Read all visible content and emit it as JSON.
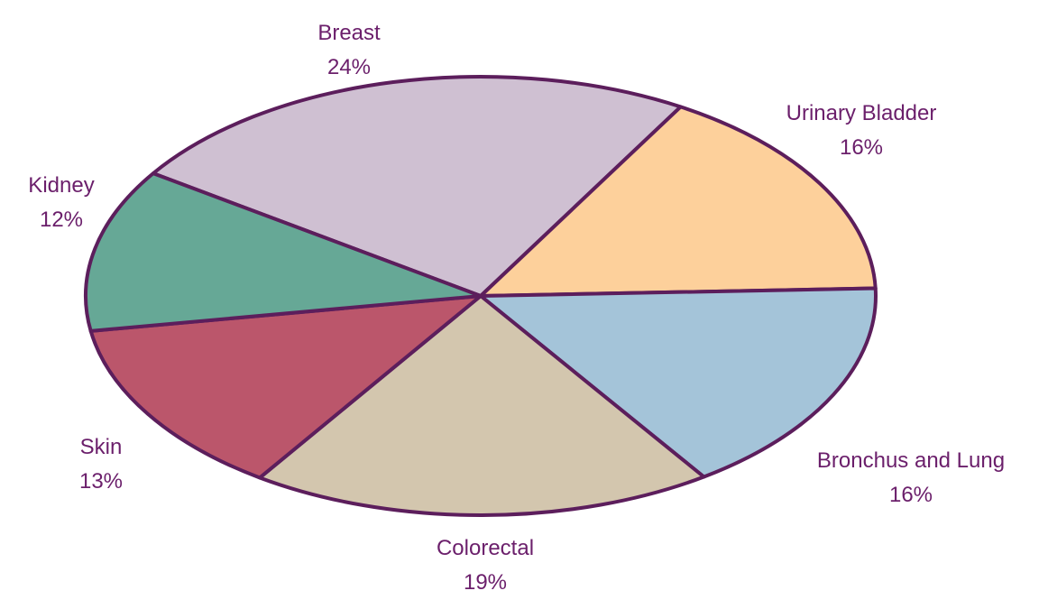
{
  "chart_data": {
    "type": "pie",
    "categories": [
      "Breast",
      "Urinary Bladder",
      "Bronchus and Lung",
      "Colorectal",
      "Skin",
      "Kidney"
    ],
    "values": [
      24,
      16,
      16,
      19,
      13,
      12
    ],
    "value_labels": [
      "24%",
      "16%",
      "16%",
      "19%",
      "13%",
      "12%"
    ],
    "colors": [
      "#cfc0d2",
      "#fdd09b",
      "#a4c4d9",
      "#d3c6ae",
      "#bb566b",
      "#66a896"
    ]
  }
}
